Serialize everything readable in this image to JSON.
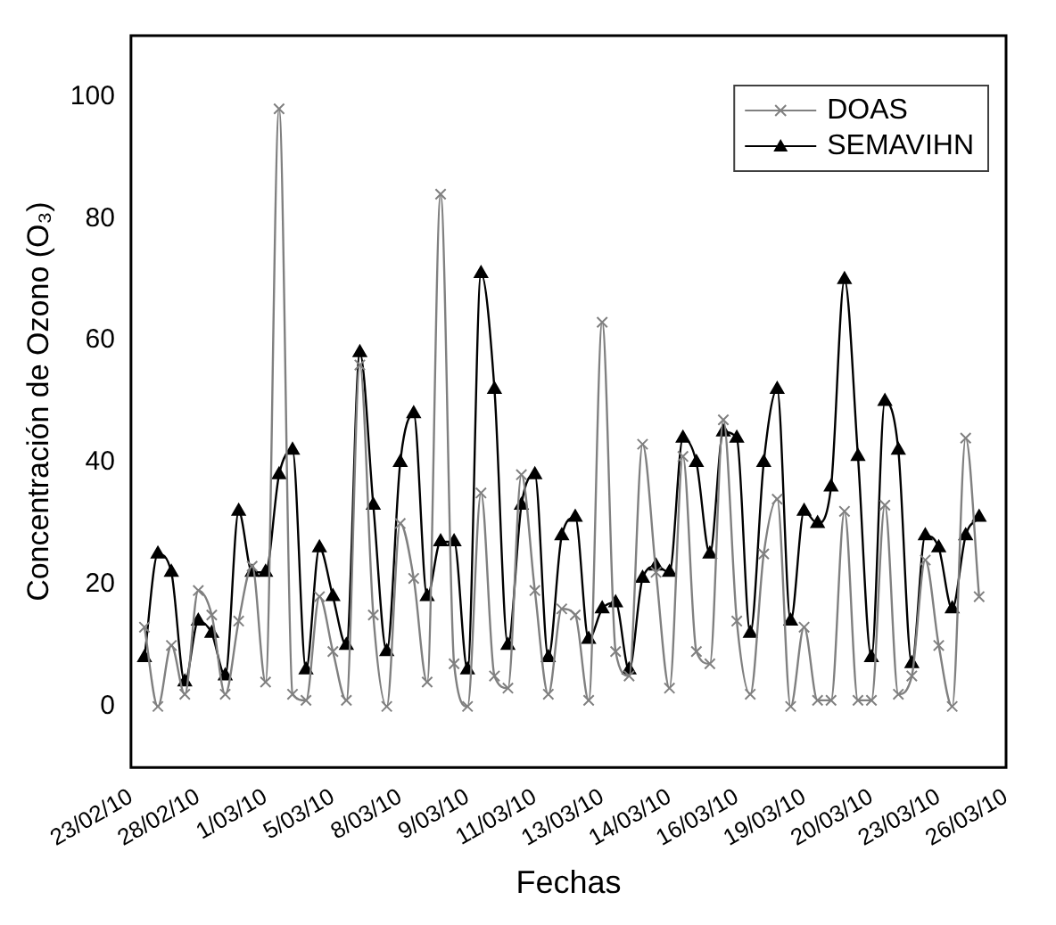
{
  "chart_data": {
    "type": "line",
    "xlabel": "Fechas",
    "ylabel": "Concentración de Ozono (O₃)",
    "categories": [
      "23/02/10",
      null,
      null,
      null,
      null,
      "28/02/10",
      null,
      null,
      null,
      null,
      "1/03/10",
      null,
      null,
      null,
      null,
      "5/03/10",
      null,
      null,
      null,
      null,
      "8/03/10",
      null,
      null,
      null,
      null,
      "9/03/10",
      null,
      null,
      null,
      null,
      "11/03/10",
      null,
      null,
      null,
      null,
      "13/03/10",
      null,
      null,
      null,
      null,
      "14/03/10",
      null,
      null,
      null,
      null,
      "16/03/10",
      null,
      null,
      null,
      null,
      "19/03/10",
      null,
      null,
      null,
      null,
      "20/03/10",
      null,
      null,
      null,
      null,
      "23/03/10",
      null,
      null,
      null,
      null,
      "26/03/10"
    ],
    "series": [
      {
        "name": "DOAS",
        "color": "#808080",
        "marker": "cross",
        "values": [
          null,
          13,
          0,
          10,
          2,
          19,
          15,
          2,
          14,
          23,
          4,
          98,
          2,
          1,
          18,
          9,
          1,
          56,
          15,
          0,
          30,
          21,
          4,
          84,
          7,
          0,
          35,
          5,
          3,
          38,
          19,
          2,
          16,
          15,
          1,
          63,
          9,
          5,
          43,
          22,
          3,
          41,
          9,
          7,
          47,
          14,
          2,
          25,
          34,
          0,
          13,
          1,
          1,
          32,
          1,
          1,
          33,
          2,
          5,
          24,
          10,
          0,
          44,
          18,
          null,
          null
        ]
      },
      {
        "name": "SEMAVIHN",
        "color": "#000000",
        "marker": "triangle",
        "values": [
          null,
          8,
          25,
          22,
          4,
          14,
          12,
          5,
          32,
          22,
          22,
          38,
          42,
          6,
          26,
          18,
          10,
          58,
          33,
          9,
          40,
          48,
          18,
          27,
          27,
          6,
          71,
          52,
          10,
          33,
          38,
          8,
          28,
          31,
          11,
          16,
          17,
          6,
          21,
          23,
          22,
          44,
          40,
          25,
          45,
          44,
          12,
          40,
          52,
          14,
          32,
          30,
          36,
          70,
          41,
          8,
          50,
          42,
          7,
          28,
          26,
          16,
          28,
          31,
          null,
          null
        ]
      }
    ],
    "ylim": [
      -10,
      110
    ],
    "yticks": [
      0,
      20,
      40,
      60,
      80,
      100
    ],
    "legend": "top right",
    "grid": false
  }
}
